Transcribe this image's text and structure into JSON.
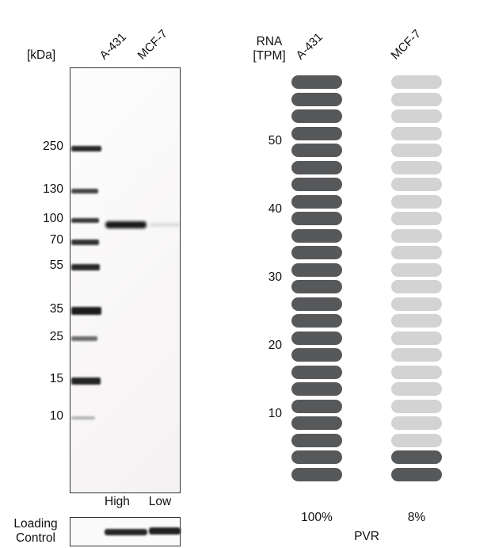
{
  "western_blot": {
    "kda_axis_label": "[kDa]",
    "lane_labels": [
      "A-431",
      "MCF-7"
    ],
    "ladder_kda": [
      250,
      130,
      100,
      70,
      55,
      35,
      25,
      15,
      10
    ],
    "expression_levels": [
      "High",
      "Low"
    ],
    "loading_control_lines": [
      "Loading",
      "Control"
    ]
  },
  "chart_data": {
    "type": "bar",
    "title": "RNA [TPM]",
    "title_lines": [
      "RNA",
      "[TPM]"
    ],
    "categories": [
      "A-431",
      "MCF-7"
    ],
    "values": [
      60,
      5
    ],
    "unit": "TPM",
    "percent_labels": [
      "100%",
      "8%"
    ],
    "yticks": [
      50,
      40,
      30,
      20,
      10
    ],
    "ylim": [
      0,
      60
    ],
    "segments_per_column": 24,
    "tpm_per_segment": 2.5,
    "dark_segments_from_bottom": [
      24,
      2
    ],
    "gene_label": "PVR",
    "colors": {
      "dark": "#57585a",
      "light": "#d3d3d4"
    }
  }
}
